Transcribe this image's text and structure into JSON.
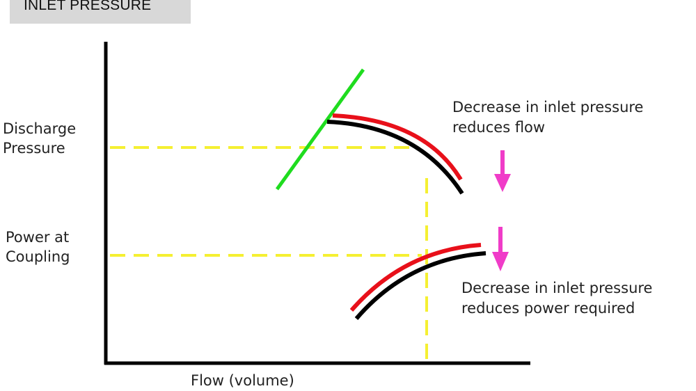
{
  "header": {
    "title": "INLET PRESSURE"
  },
  "labels": {
    "discharge_pressure_line1": "Discharge",
    "discharge_pressure_line2": "Pressure",
    "power_at_coupling_line1": "Power at",
    "power_at_coupling_line2": "Coupling",
    "x_axis": "Flow (volume)",
    "note_flow_line1": "Decrease in inlet pressure",
    "note_flow_line2": "reduces flow",
    "note_power_line1": "Decrease in inlet pressure",
    "note_power_line2": "reduces power required"
  },
  "colors": {
    "axis": "#000000",
    "reference_dashes": "#f5f032",
    "original_curve": "#e8101a",
    "reduced_curve": "#000000",
    "system_curve": "#1fdc1f",
    "arrow": "#f03cc8",
    "header_bg": "#d8d8d8"
  }
}
